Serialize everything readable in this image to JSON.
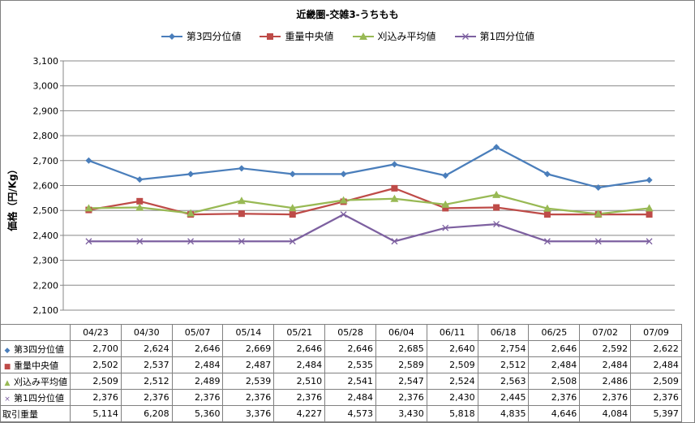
{
  "chart_data": {
    "type": "line",
    "title": "近畿圏-交雑3-うちもも",
    "ylabel": "価格（円/Kg）",
    "ylim": [
      2100,
      3100
    ],
    "yticks": [
      "2,100",
      "2,200",
      "2,300",
      "2,400",
      "2,500",
      "2,600",
      "2,700",
      "2,800",
      "2,900",
      "3,000",
      "3,100"
    ],
    "ytick_values": [
      2100,
      2200,
      2300,
      2400,
      2500,
      2600,
      2700,
      2800,
      2900,
      3000,
      3100
    ],
    "grid": true,
    "legend_position": "top",
    "categories": [
      "04/23",
      "04/30",
      "05/07",
      "05/14",
      "05/21",
      "05/28",
      "06/04",
      "06/11",
      "06/18",
      "06/25",
      "07/02",
      "07/09"
    ],
    "series": [
      {
        "name": "第3四分位値",
        "color": "#4A7EBB",
        "marker": "diamond",
        "values": [
          2700,
          2624,
          2646,
          2669,
          2646,
          2646,
          2685,
          2640,
          2754,
          2646,
          2592,
          2622
        ],
        "labels": [
          "2,700",
          "2,624",
          "2,646",
          "2,669",
          "2,646",
          "2,646",
          "2,685",
          "2,640",
          "2,754",
          "2,646",
          "2,592",
          "2,622"
        ]
      },
      {
        "name": "重量中央値",
        "color": "#BE4B48",
        "marker": "square",
        "values": [
          2502,
          2537,
          2484,
          2487,
          2484,
          2535,
          2589,
          2509,
          2512,
          2484,
          2484,
          2484
        ],
        "labels": [
          "2,502",
          "2,537",
          "2,484",
          "2,487",
          "2,484",
          "2,535",
          "2,589",
          "2,509",
          "2,512",
          "2,484",
          "2,484",
          "2,484"
        ]
      },
      {
        "name": "刈込み平均値",
        "color": "#98B954",
        "marker": "triangle",
        "values": [
          2509,
          2512,
          2489,
          2539,
          2510,
          2541,
          2547,
          2524,
          2563,
          2508,
          2486,
          2509
        ],
        "labels": [
          "2,509",
          "2,512",
          "2,489",
          "2,539",
          "2,510",
          "2,541",
          "2,547",
          "2,524",
          "2,563",
          "2,508",
          "2,486",
          "2,509"
        ]
      },
      {
        "name": "第1四分位値",
        "color": "#7D60A0",
        "marker": "x",
        "values": [
          2376,
          2376,
          2376,
          2376,
          2376,
          2484,
          2376,
          2430,
          2445,
          2376,
          2376,
          2376
        ],
        "labels": [
          "2,376",
          "2,376",
          "2,376",
          "2,376",
          "2,376",
          "2,484",
          "2,376",
          "2,430",
          "2,445",
          "2,376",
          "2,376",
          "2,376"
        ]
      }
    ],
    "extra_rows": [
      {
        "name": "取引重量",
        "labels": [
          "5,114",
          "6,208",
          "5,360",
          "3,376",
          "4,227",
          "4,573",
          "3,430",
          "5,818",
          "4,835",
          "4,646",
          "4,084",
          "5,397"
        ]
      }
    ]
  }
}
